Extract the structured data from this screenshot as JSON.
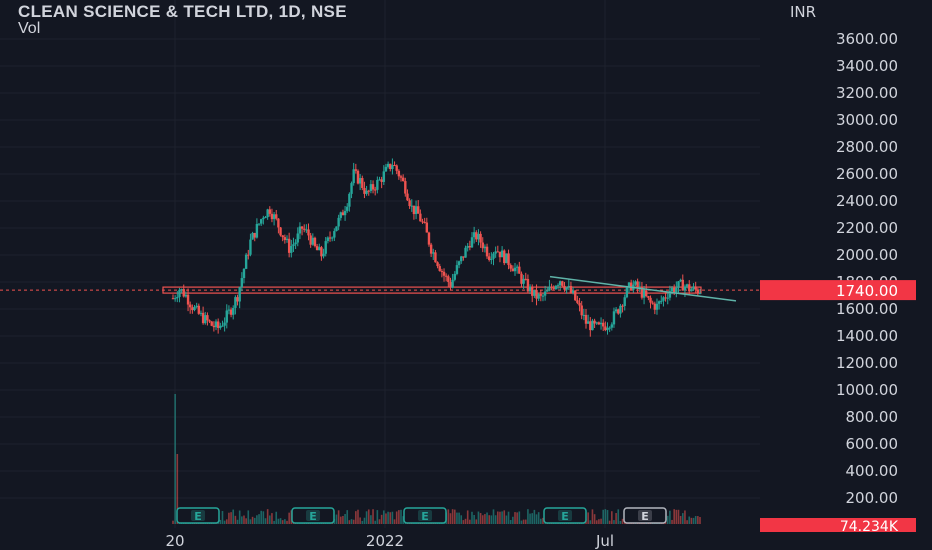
{
  "header": {
    "title": "CLEAN SCIENCE & TECH LTD, 1D, NSE",
    "subtitle": "Vol"
  },
  "colors": {
    "background": "#131722",
    "up": "#26a69a",
    "down": "#ef5350",
    "trendline": "#5fb3a8",
    "price_label_bg": "#f23645",
    "grid": "#1e222d"
  },
  "chart_data": {
    "type": "candlestick",
    "currency": "INR",
    "y_ticks": [
      "3600.00",
      "3400.00",
      "3200.00",
      "3000.00",
      "2800.00",
      "2600.00",
      "2400.00",
      "2200.00",
      "2000.00",
      "1800.00",
      "1600.00",
      "1400.00",
      "1200.00",
      "1000.00",
      "800.00",
      "600.00",
      "400.00",
      "200.00"
    ],
    "x_ticks": [
      "20",
      "2022",
      "Jul"
    ],
    "last_price_label": "1740.00",
    "volume_label": "74.234K",
    "horizontal_line_price": 1740,
    "trendline": {
      "from": 1840,
      "to": 1660
    },
    "earnings_marker": "E",
    "earnings_count": 5,
    "price_series_approx": [
      1680,
      1750,
      1700,
      1620,
      1560,
      1520,
      1480,
      1460,
      1520,
      1600,
      1700,
      1900,
      2100,
      2200,
      2300,
      2340,
      2250,
      2150,
      2050,
      2100,
      2200,
      2150,
      2050,
      2000,
      2100,
      2200,
      2280,
      2400,
      2600,
      2550,
      2450,
      2500,
      2550,
      2620,
      2680,
      2600,
      2500,
      2350,
      2300,
      2200,
      2050,
      1950,
      1850,
      1780,
      1900,
      2000,
      2100,
      2140,
      2080,
      2000,
      2050,
      2000,
      1950,
      1900,
      1820,
      1760,
      1700,
      1680,
      1720,
      1780,
      1820,
      1760,
      1700,
      1600,
      1500,
      1470,
      1460,
      1480,
      1520,
      1600,
      1700,
      1780,
      1760,
      1700,
      1640,
      1620,
      1680,
      1740,
      1760,
      1780,
      1750,
      1740
    ]
  }
}
